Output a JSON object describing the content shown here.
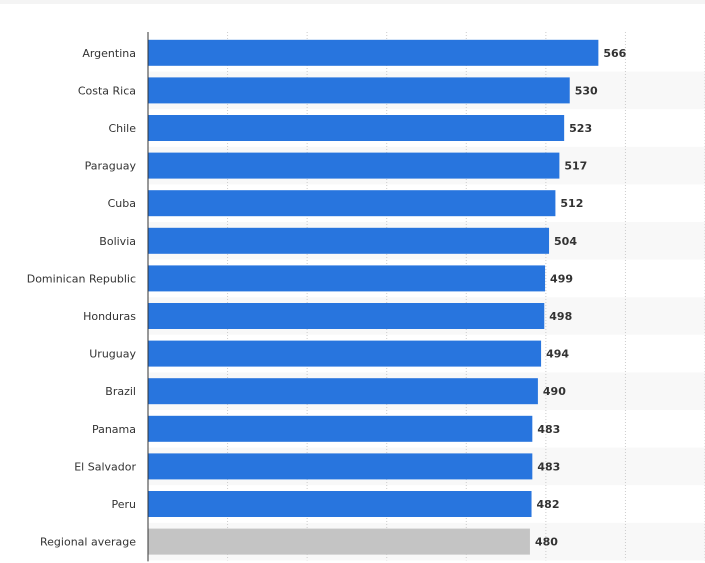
{
  "chart_data": {
    "type": "bar",
    "orientation": "horizontal",
    "categories": [
      "Argentina",
      "Costa Rica",
      "Chile",
      "Paraguay",
      "Cuba",
      "Bolivia",
      "Dominican Republic",
      "Honduras",
      "Uruguay",
      "Brazil",
      "Panama",
      "El Salvador",
      "Peru",
      "Regional average"
    ],
    "values": [
      566,
      530,
      523,
      517,
      512,
      504,
      499,
      498,
      494,
      490,
      483,
      483,
      482,
      480
    ],
    "highlight_category": "Regional average",
    "title": "",
    "xlabel": "",
    "ylabel": "",
    "xlim": [
      0,
      700
    ],
    "grid": true,
    "legend": "none",
    "colors": {
      "bar": "#2875de",
      "highlight_bar": "#c4c4c4",
      "grid": "#cccccc",
      "axis": "#333333",
      "alt_row": "#f8f8f8"
    }
  }
}
